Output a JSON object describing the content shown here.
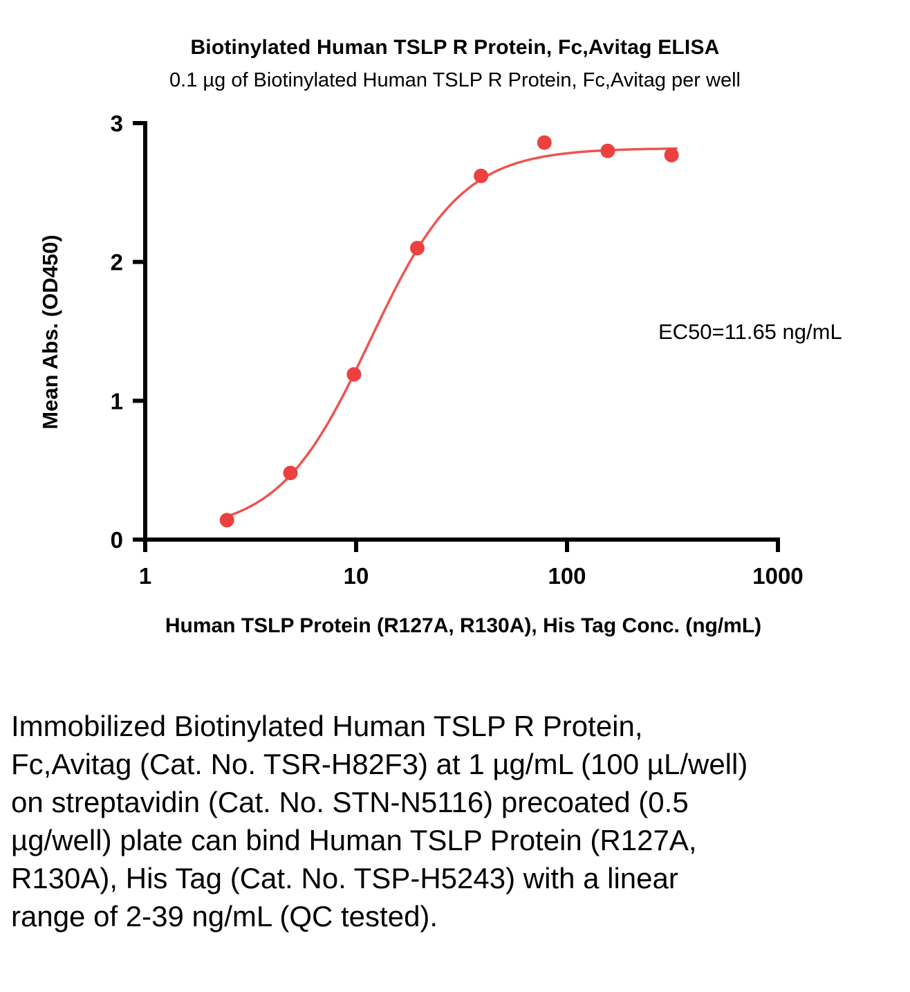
{
  "figure": {
    "description": "Immobilized Biotinylated Human TSLP R Protein, Fc,Avitag (Cat. No. TSR-H82F3) at 1 µg/mL (100 µL/well) on streptavidin (Cat. No. STN-N5116) precoated (0.5 µg/well) plate can bind Human TSLP Protein (R127A, R130A), His Tag (Cat. No. TSP-H5243) with a linear range of 2-39 ng/mL (QC tested)."
  },
  "chart_data": {
    "type": "scatter",
    "title": "Biotinylated Human TSLP R Protein, Fc,Avitag ELISA",
    "subtitle": "0.1 µg of Biotinylated Human TSLP R Protein, Fc,Avitag per well",
    "xlabel": "Human TSLP Protein (R127A, R130A), His Tag Conc. (ng/mL)",
    "ylabel": "Mean Abs. (OD450)",
    "annotation": "EC50=11.65 ng/mL",
    "x_scale": "log10",
    "xlim": [
      1,
      1000
    ],
    "ylim": [
      0,
      3
    ],
    "x_ticks": [
      1,
      10,
      100,
      1000
    ],
    "y_ticks": [
      0,
      1,
      2,
      3
    ],
    "x": [
      2.44,
      4.88,
      9.77,
      19.5,
      39.1,
      78.1,
      156,
      313
    ],
    "y": [
      0.14,
      0.48,
      1.19,
      2.1,
      2.62,
      2.86,
      2.8,
      2.77
    ],
    "fit_4pl": {
      "bottom": 0.05,
      "top": 2.82,
      "ec50": 11.65,
      "hill": 2.0
    },
    "curve_x_range": [
      2.35,
      330
    ],
    "grid": false,
    "legend": "none",
    "point_color": "#ec4140",
    "line_color": "#ef5350",
    "axis_color": "#000000"
  }
}
